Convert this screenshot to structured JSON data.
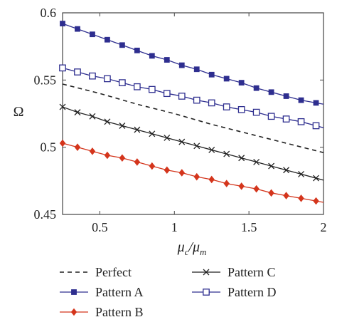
{
  "chart_data": {
    "type": "line",
    "xlabel": "μc/μm",
    "xlabel_main": "μ",
    "xlabel_sub1": "c",
    "xlabel_slash": "/μ",
    "xlabel_sub2": "m",
    "ylabel": "Ω",
    "xlim": [
      0.25,
      2.0
    ],
    "ylim": [
      0.45,
      0.6
    ],
    "xticks": [
      "0.5",
      "1",
      "1.5",
      "2"
    ],
    "xtick_values": [
      0.5,
      1.0,
      1.5,
      2.0
    ],
    "yticks": [
      "0.45",
      "0.5",
      "0.55",
      "0.6"
    ],
    "ytick_values": [
      0.45,
      0.5,
      0.55,
      0.6
    ],
    "grid": false,
    "legend_position": "bottom",
    "series": [
      {
        "name": "Perfect",
        "color": "#222222",
        "line_style": "dashed",
        "marker": "none",
        "x": [
          0.25,
          0.5,
          0.75,
          1.0,
          1.25,
          1.5,
          1.75,
          2.0
        ],
        "values": [
          0.547,
          0.54,
          0.532,
          0.525,
          0.517,
          0.51,
          0.503,
          0.496
        ]
      },
      {
        "name": "Pattern A",
        "color": "#2e2e8f",
        "line_style": "solid",
        "marker": "filled-square",
        "x": [
          0.25,
          0.35,
          0.45,
          0.55,
          0.65,
          0.75,
          0.85,
          0.95,
          1.05,
          1.15,
          1.25,
          1.35,
          1.45,
          1.55,
          1.65,
          1.75,
          1.85,
          1.95
        ],
        "values": [
          0.592,
          0.588,
          0.584,
          0.58,
          0.576,
          0.572,
          0.568,
          0.565,
          0.561,
          0.558,
          0.554,
          0.551,
          0.548,
          0.544,
          0.541,
          0.538,
          0.535,
          0.533
        ]
      },
      {
        "name": "Pattern B",
        "color": "#d4351c",
        "line_style": "solid",
        "marker": "filled-diamond",
        "x": [
          0.25,
          0.35,
          0.45,
          0.55,
          0.65,
          0.75,
          0.85,
          0.95,
          1.05,
          1.15,
          1.25,
          1.35,
          1.45,
          1.55,
          1.65,
          1.75,
          1.85,
          1.95
        ],
        "values": [
          0.503,
          0.5,
          0.497,
          0.494,
          0.492,
          0.489,
          0.486,
          0.483,
          0.481,
          0.478,
          0.476,
          0.473,
          0.471,
          0.469,
          0.466,
          0.464,
          0.462,
          0.46
        ]
      },
      {
        "name": "Pattern C",
        "color": "#222222",
        "line_style": "solid",
        "marker": "x",
        "x": [
          0.25,
          0.35,
          0.45,
          0.55,
          0.65,
          0.75,
          0.85,
          0.95,
          1.05,
          1.15,
          1.25,
          1.35,
          1.45,
          1.55,
          1.65,
          1.75,
          1.85,
          1.95
        ],
        "values": [
          0.53,
          0.526,
          0.523,
          0.519,
          0.516,
          0.513,
          0.51,
          0.507,
          0.504,
          0.501,
          0.498,
          0.495,
          0.492,
          0.489,
          0.486,
          0.483,
          0.48,
          0.477
        ]
      },
      {
        "name": "Pattern D",
        "color": "#2e2e8f",
        "line_style": "solid",
        "marker": "open-square",
        "x": [
          0.25,
          0.35,
          0.45,
          0.55,
          0.65,
          0.75,
          0.85,
          0.95,
          1.05,
          1.15,
          1.25,
          1.35,
          1.45,
          1.55,
          1.65,
          1.75,
          1.85,
          1.95
        ],
        "values": [
          0.559,
          0.556,
          0.553,
          0.551,
          0.548,
          0.545,
          0.543,
          0.54,
          0.538,
          0.535,
          0.533,
          0.53,
          0.528,
          0.526,
          0.523,
          0.521,
          0.519,
          0.516
        ]
      }
    ]
  }
}
